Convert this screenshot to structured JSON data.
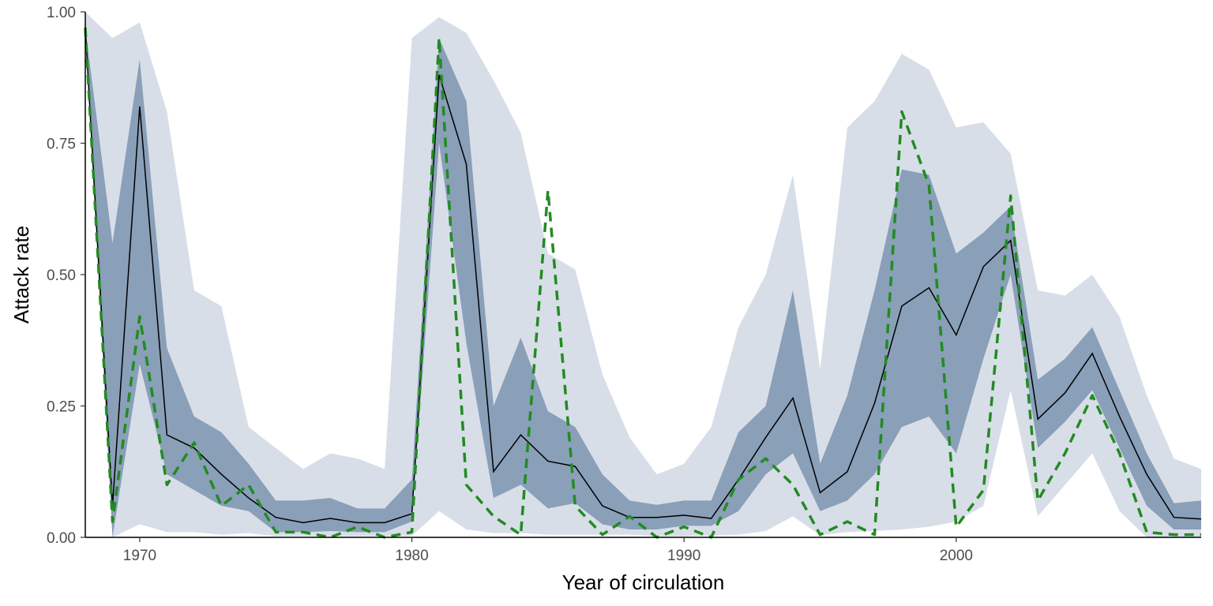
{
  "chart_data": {
    "type": "area",
    "title": "",
    "xlabel": "Year of circulation",
    "ylabel": "Attack rate",
    "xlim": [
      1968,
      2009
    ],
    "ylim": [
      0,
      1
    ],
    "x_ticks": [
      1970,
      1980,
      1990,
      2000
    ],
    "y_ticks": [
      0,
      0.25,
      0.5,
      0.75,
      1
    ],
    "y_tick_labels": [
      "0.00",
      "0.25",
      "0.50",
      "0.75",
      "1.00"
    ],
    "grid": false,
    "legend": "none",
    "x": [
      1968,
      1969,
      1970,
      1971,
      1972,
      1973,
      1974,
      1975,
      1976,
      1977,
      1978,
      1979,
      1980,
      1981,
      1982,
      1983,
      1984,
      1985,
      1986,
      1987,
      1988,
      1989,
      1990,
      1991,
      1992,
      1993,
      1994,
      1995,
      1996,
      1997,
      1998,
      1999,
      2000,
      2001,
      2002,
      2003,
      2004,
      2005,
      2006,
      2007,
      2008,
      2009
    ],
    "series": [
      {
        "role": "outer_band",
        "color": "#d8dee8",
        "lower": [
          0.98,
          0.0,
          0.025,
          0.01,
          0.01,
          0.005,
          0.008,
          0.002,
          0.002,
          0.002,
          0.002,
          0.002,
          0.003,
          0.05,
          0.015,
          0.008,
          0.008,
          0.005,
          0.005,
          0.005,
          0.005,
          0.002,
          0.002,
          0.003,
          0.005,
          0.012,
          0.04,
          0.004,
          0.01,
          0.012,
          0.015,
          0.02,
          0.03,
          0.06,
          0.28,
          0.04,
          0.1,
          0.16,
          0.05,
          0.0,
          0.0,
          0.0
        ],
        "upper": [
          1.0,
          0.95,
          0.98,
          0.81,
          0.47,
          0.44,
          0.21,
          0.17,
          0.13,
          0.16,
          0.15,
          0.13,
          0.95,
          0.99,
          0.96,
          0.87,
          0.77,
          0.54,
          0.51,
          0.31,
          0.19,
          0.12,
          0.14,
          0.21,
          0.4,
          0.5,
          0.69,
          0.32,
          0.78,
          0.83,
          0.92,
          0.89,
          0.78,
          0.79,
          0.73,
          0.47,
          0.46,
          0.5,
          0.42,
          0.27,
          0.15,
          0.13
        ]
      },
      {
        "role": "inner_band",
        "color": "#8a9fb8",
        "lower": [
          0.96,
          0.0,
          0.33,
          0.12,
          0.09,
          0.06,
          0.05,
          0.01,
          0.01,
          0.012,
          0.01,
          0.01,
          0.03,
          0.75,
          0.37,
          0.075,
          0.1,
          0.055,
          0.065,
          0.025,
          0.015,
          0.015,
          0.022,
          0.022,
          0.05,
          0.12,
          0.16,
          0.05,
          0.07,
          0.12,
          0.21,
          0.23,
          0.16,
          0.34,
          0.5,
          0.17,
          0.22,
          0.28,
          0.17,
          0.06,
          0.015,
          0.015
        ],
        "upper": [
          0.97,
          0.56,
          0.91,
          0.36,
          0.23,
          0.2,
          0.14,
          0.07,
          0.07,
          0.075,
          0.055,
          0.055,
          0.11,
          0.95,
          0.83,
          0.25,
          0.38,
          0.24,
          0.21,
          0.12,
          0.07,
          0.062,
          0.07,
          0.07,
          0.2,
          0.25,
          0.47,
          0.14,
          0.27,
          0.47,
          0.7,
          0.69,
          0.54,
          0.58,
          0.63,
          0.3,
          0.34,
          0.4,
          0.28,
          0.16,
          0.065,
          0.07
        ]
      },
      {
        "role": "median",
        "color": "#000000",
        "values": [
          0.97,
          0.06,
          0.82,
          0.195,
          0.17,
          0.12,
          0.075,
          0.038,
          0.028,
          0.036,
          0.028,
          0.028,
          0.045,
          0.88,
          0.71,
          0.125,
          0.195,
          0.145,
          0.135,
          0.06,
          0.038,
          0.038,
          0.042,
          0.036,
          0.11,
          0.19,
          0.265,
          0.085,
          0.125,
          0.255,
          0.44,
          0.475,
          0.385,
          0.515,
          0.565,
          0.225,
          0.275,
          0.35,
          0.23,
          0.12,
          0.038,
          0.035
        ]
      },
      {
        "role": "observed",
        "color": "#228b22",
        "x": [
          1968,
          1969,
          1970,
          1971,
          1972,
          1973,
          1974,
          1975,
          1976,
          1977,
          1978,
          1979,
          1980,
          1981,
          1982,
          1983,
          1984,
          1985,
          1986,
          1987,
          1988,
          1989,
          1990,
          1991,
          1992,
          1993,
          1994,
          1995,
          1996,
          1997,
          1998,
          1999,
          2000,
          2001,
          2002,
          2003,
          2004,
          2005,
          2006,
          2007,
          2008,
          2009
        ],
        "values": [
          0.97,
          0.03,
          0.42,
          0.1,
          0.18,
          0.06,
          0.1,
          0.01,
          0.01,
          0.0,
          0.02,
          0.0,
          0.01,
          0.95,
          0.1,
          0.04,
          0.005,
          0.66,
          0.06,
          0.005,
          0.04,
          0.0,
          0.02,
          0.0,
          0.11,
          0.15,
          0.1,
          0.005,
          0.03,
          0.005,
          0.81,
          0.67,
          0.02,
          0.09,
          0.65,
          0.07,
          0.16,
          0.27,
          0.16,
          0.01,
          0.005,
          0.005
        ]
      }
    ]
  }
}
